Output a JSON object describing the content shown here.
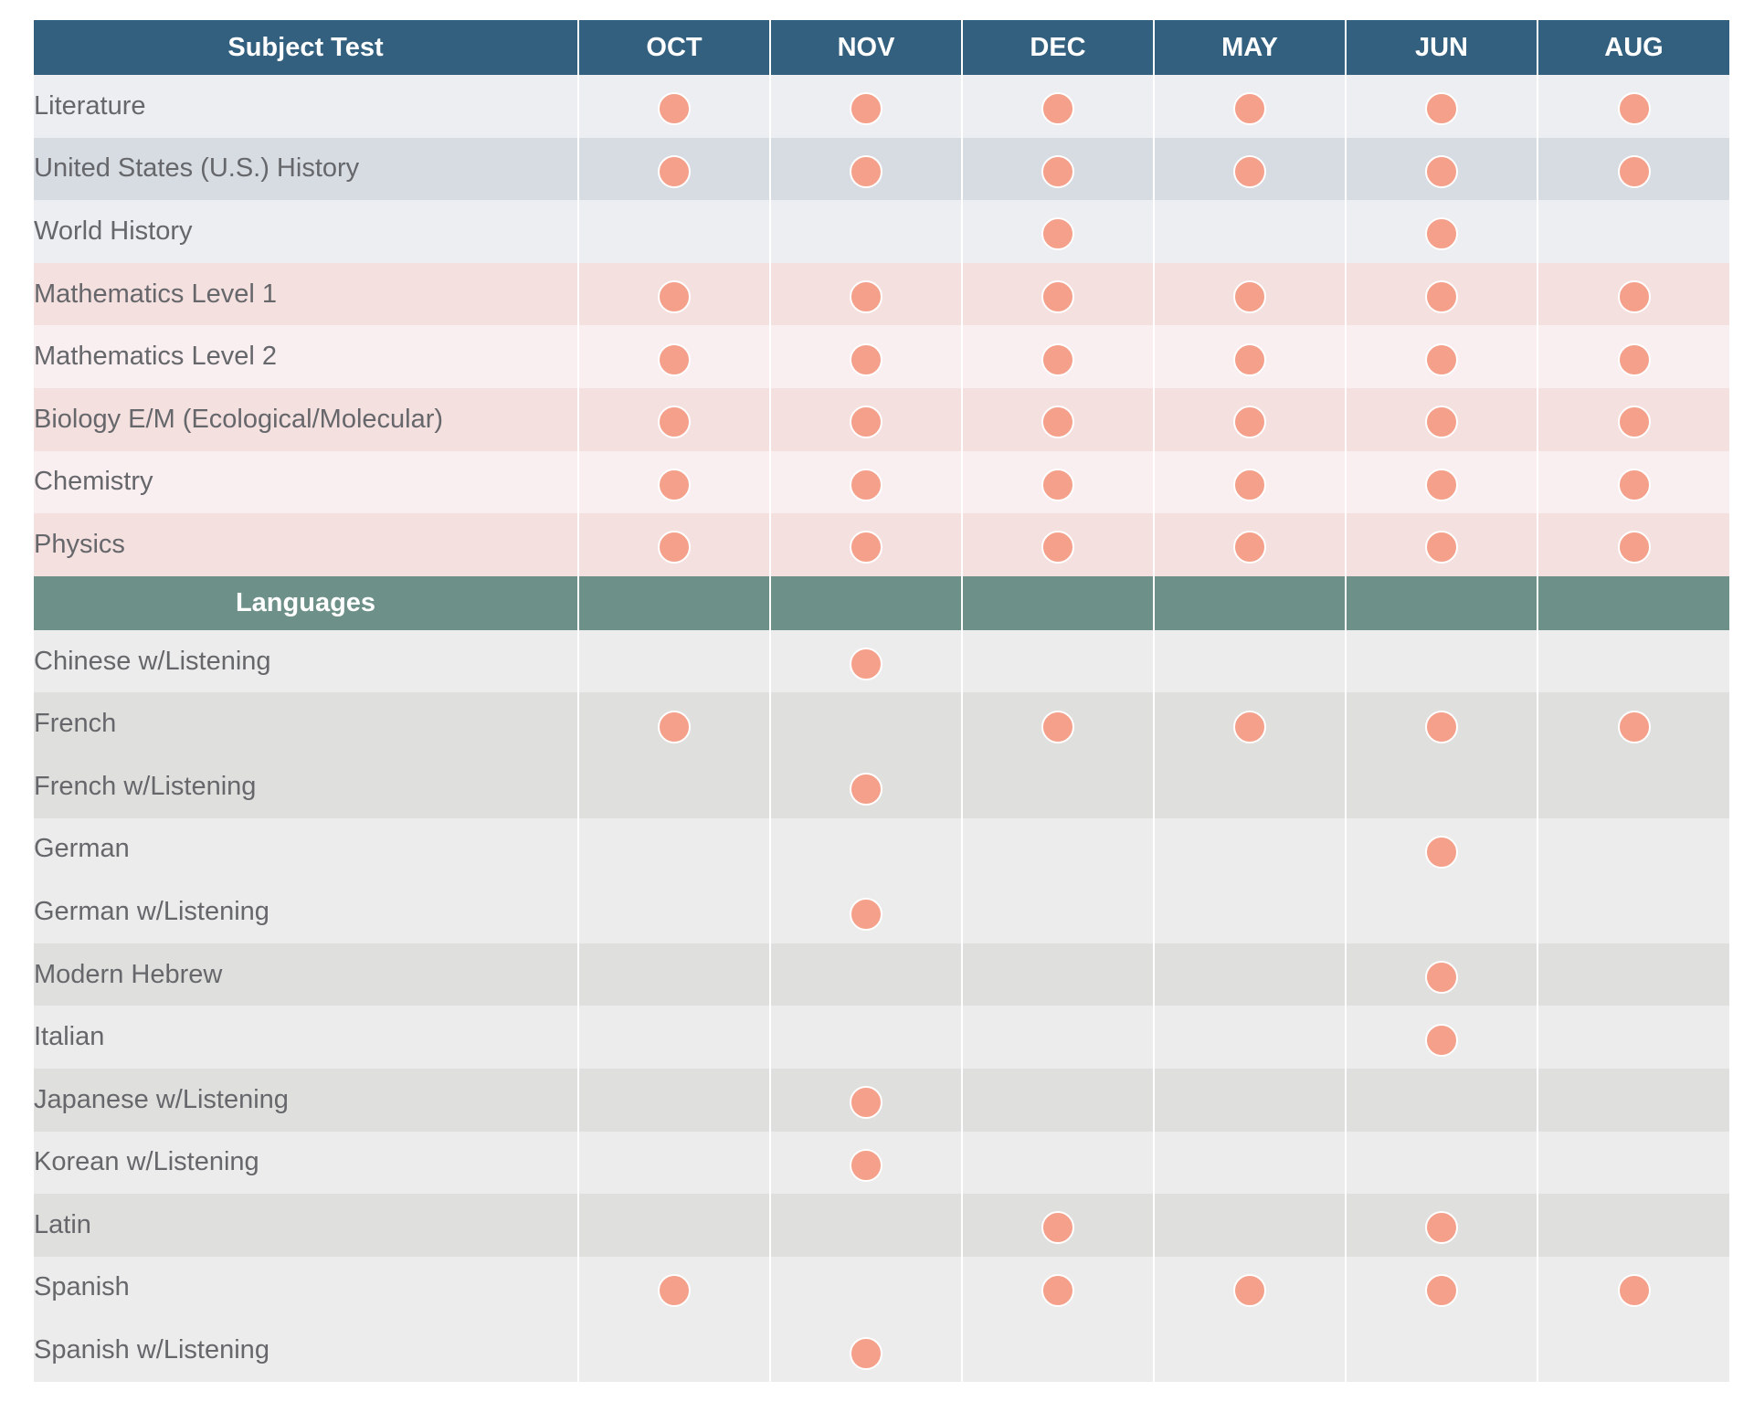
{
  "header": {
    "subject_label": "Subject Test",
    "months": [
      "OCT",
      "NOV",
      "DEC",
      "MAY",
      "JUN",
      "AUG"
    ]
  },
  "colors": {
    "header_bg": "#33607f",
    "languages_header_bg": "#6d9088",
    "dot": "#f4a08a",
    "text": "#66676b"
  },
  "subjects": [
    {
      "name": "Literature",
      "bg": "#edeef2",
      "dates": [
        true,
        true,
        true,
        true,
        true,
        true
      ]
    },
    {
      "name": "United States (U.S.) History",
      "bg": "#d7dce3",
      "dates": [
        true,
        true,
        true,
        true,
        true,
        true
      ]
    },
    {
      "name": "World History",
      "bg": "#edeef2",
      "dates": [
        false,
        false,
        true,
        false,
        true,
        false
      ]
    },
    {
      "name": "Mathematics Level 1",
      "bg": "#f5e0e0",
      "dates": [
        true,
        true,
        true,
        true,
        true,
        true
      ]
    },
    {
      "name": "Mathematics Level 2",
      "bg": "#f9eff0",
      "dates": [
        true,
        true,
        true,
        true,
        true,
        true
      ]
    },
    {
      "name": "Biology E/M (Ecological/Molecular)",
      "bg": "#f5e0e0",
      "dates": [
        true,
        true,
        true,
        true,
        true,
        true
      ]
    },
    {
      "name": "Chemistry",
      "bg": "#f9eff0",
      "dates": [
        true,
        true,
        true,
        true,
        true,
        true
      ]
    },
    {
      "name": "Physics",
      "bg": "#f5e0e0",
      "dates": [
        true,
        true,
        true,
        true,
        true,
        true
      ]
    }
  ],
  "languages_label": "Languages",
  "languages": [
    {
      "name": "Chinese w/Listening",
      "bg": "#ebeceа",
      "dates": [
        false,
        true,
        false,
        false,
        false,
        false
      ]
    },
    {
      "name": "French",
      "bg": "#dfe0de",
      "dates": [
        true,
        false,
        true,
        true,
        true,
        true
      ]
    },
    {
      "name": "French w/Listening",
      "bg": "#dfe0de",
      "dates": [
        false,
        true,
        false,
        false,
        false,
        false
      ]
    },
    {
      "name": "German",
      "bg": "#ebeceb",
      "dates": [
        false,
        false,
        false,
        false,
        true,
        false
      ]
    },
    {
      "name": "German w/Listening",
      "bg": "#ebeceb",
      "dates": [
        false,
        true,
        false,
        false,
        false,
        false
      ]
    },
    {
      "name": "Modern Hebrew",
      "bg": "#dfe0de",
      "dates": [
        false,
        false,
        false,
        false,
        true,
        false
      ]
    },
    {
      "name": "Italian",
      "bg": "#ebeceb",
      "dates": [
        false,
        false,
        false,
        false,
        true,
        false
      ]
    },
    {
      "name": "Japanese w/Listening",
      "bg": "#dfe0de",
      "dates": [
        false,
        true,
        false,
        false,
        false,
        false
      ]
    },
    {
      "name": "Korean w/Listening",
      "bg": "#ebeceb",
      "dates": [
        false,
        true,
        false,
        false,
        false,
        false
      ]
    },
    {
      "name": "Latin",
      "bg": "#dfe0de",
      "dates": [
        false,
        false,
        true,
        false,
        true,
        false
      ]
    },
    {
      "name": "Spanish",
      "bg": "#ebeceb",
      "dates": [
        true,
        false,
        true,
        true,
        true,
        true
      ]
    },
    {
      "name": "Spanish w/Listening",
      "bg": "#ebeceb",
      "dates": [
        false,
        true,
        false,
        false,
        false,
        false
      ]
    }
  ]
}
